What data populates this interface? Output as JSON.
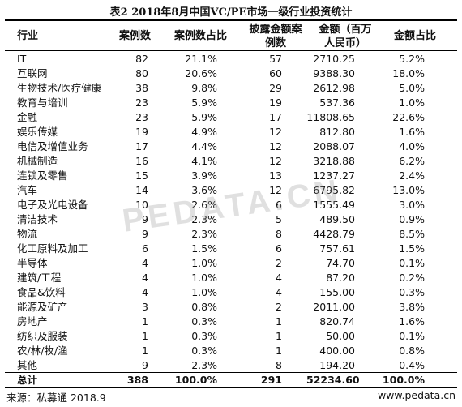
{
  "title": "表2  2018年8月中国VC/PE市场一级行业投资统计",
  "headers": {
    "industry": "行业",
    "cases": "案例数",
    "case_ratio": "案例数占比",
    "disclosed": [
      "披露金额案",
      "例数"
    ],
    "amount": [
      "金额（百万",
      "人民币）"
    ],
    "amount_ratio": "金额占比"
  },
  "rows": [
    {
      "name": "IT",
      "cases": "82",
      "case_ratio": "21.1%",
      "disclosed": "57",
      "amount": "2710.25",
      "amount_ratio": "5.2%"
    },
    {
      "name": "互联网",
      "cases": "80",
      "case_ratio": "20.6%",
      "disclosed": "60",
      "amount": "9388.30",
      "amount_ratio": "18.0%"
    },
    {
      "name": "生物技术/医疗健康",
      "cases": "38",
      "case_ratio": "9.8%",
      "disclosed": "29",
      "amount": "2612.98",
      "amount_ratio": "5.0%"
    },
    {
      "name": "教育与培训",
      "cases": "23",
      "case_ratio": "5.9%",
      "disclosed": "19",
      "amount": "537.36",
      "amount_ratio": "1.0%"
    },
    {
      "name": "金融",
      "cases": "23",
      "case_ratio": "5.9%",
      "disclosed": "17",
      "amount": "11808.65",
      "amount_ratio": "22.6%"
    },
    {
      "name": "娱乐传媒",
      "cases": "19",
      "case_ratio": "4.9%",
      "disclosed": "12",
      "amount": "812.80",
      "amount_ratio": "1.6%"
    },
    {
      "name": "电信及增值业务",
      "cases": "17",
      "case_ratio": "4.4%",
      "disclosed": "12",
      "amount": "2088.07",
      "amount_ratio": "4.0%"
    },
    {
      "name": "机械制造",
      "cases": "16",
      "case_ratio": "4.1%",
      "disclosed": "12",
      "amount": "3218.88",
      "amount_ratio": "6.2%"
    },
    {
      "name": "连锁及零售",
      "cases": "15",
      "case_ratio": "3.9%",
      "disclosed": "13",
      "amount": "1237.27",
      "amount_ratio": "2.4%"
    },
    {
      "name": "汽车",
      "cases": "14",
      "case_ratio": "3.6%",
      "disclosed": "12",
      "amount": "6795.82",
      "amount_ratio": "13.0%"
    },
    {
      "name": "电子及光电设备",
      "cases": "10",
      "case_ratio": "2.6%",
      "disclosed": "6",
      "amount": "1555.49",
      "amount_ratio": "3.0%"
    },
    {
      "name": "清洁技术",
      "cases": "9",
      "case_ratio": "2.3%",
      "disclosed": "5",
      "amount": "489.50",
      "amount_ratio": "0.9%"
    },
    {
      "name": "物流",
      "cases": "9",
      "case_ratio": "2.3%",
      "disclosed": "8",
      "amount": "4428.79",
      "amount_ratio": "8.5%"
    },
    {
      "name": "化工原料及加工",
      "cases": "6",
      "case_ratio": "1.5%",
      "disclosed": "6",
      "amount": "757.61",
      "amount_ratio": "1.5%"
    },
    {
      "name": "半导体",
      "cases": "4",
      "case_ratio": "1.0%",
      "disclosed": "2",
      "amount": "74.70",
      "amount_ratio": "0.1%"
    },
    {
      "name": "建筑/工程",
      "cases": "4",
      "case_ratio": "1.0%",
      "disclosed": "4",
      "amount": "87.20",
      "amount_ratio": "0.2%"
    },
    {
      "name": "食品&饮料",
      "cases": "4",
      "case_ratio": "1.0%",
      "disclosed": "4",
      "amount": "155.00",
      "amount_ratio": "0.3%"
    },
    {
      "name": "能源及矿产",
      "cases": "3",
      "case_ratio": "0.8%",
      "disclosed": "2",
      "amount": "2011.00",
      "amount_ratio": "3.8%"
    },
    {
      "name": "房地产",
      "cases": "1",
      "case_ratio": "0.3%",
      "disclosed": "1",
      "amount": "820.74",
      "amount_ratio": "1.6%"
    },
    {
      "name": "纺织及服装",
      "cases": "1",
      "case_ratio": "0.3%",
      "disclosed": "1",
      "amount": "50.00",
      "amount_ratio": "0.1%"
    },
    {
      "name": "农/林/牧/渔",
      "cases": "1",
      "case_ratio": "0.3%",
      "disclosed": "1",
      "amount": "400.00",
      "amount_ratio": "0.8%"
    },
    {
      "name": "其他",
      "cases": "9",
      "case_ratio": "2.3%",
      "disclosed": "8",
      "amount": "194.20",
      "amount_ratio": "0.4%"
    }
  ],
  "total": {
    "name": "总计",
    "cases": "388",
    "case_ratio": "100.0%",
    "disclosed": "291",
    "amount": "52234.60",
    "amount_ratio": "100.0%"
  },
  "footer": {
    "source": "来源：私募通  2018.9",
    "website": "www.pedata.cn"
  },
  "watermark": "PEDATA.CN"
}
